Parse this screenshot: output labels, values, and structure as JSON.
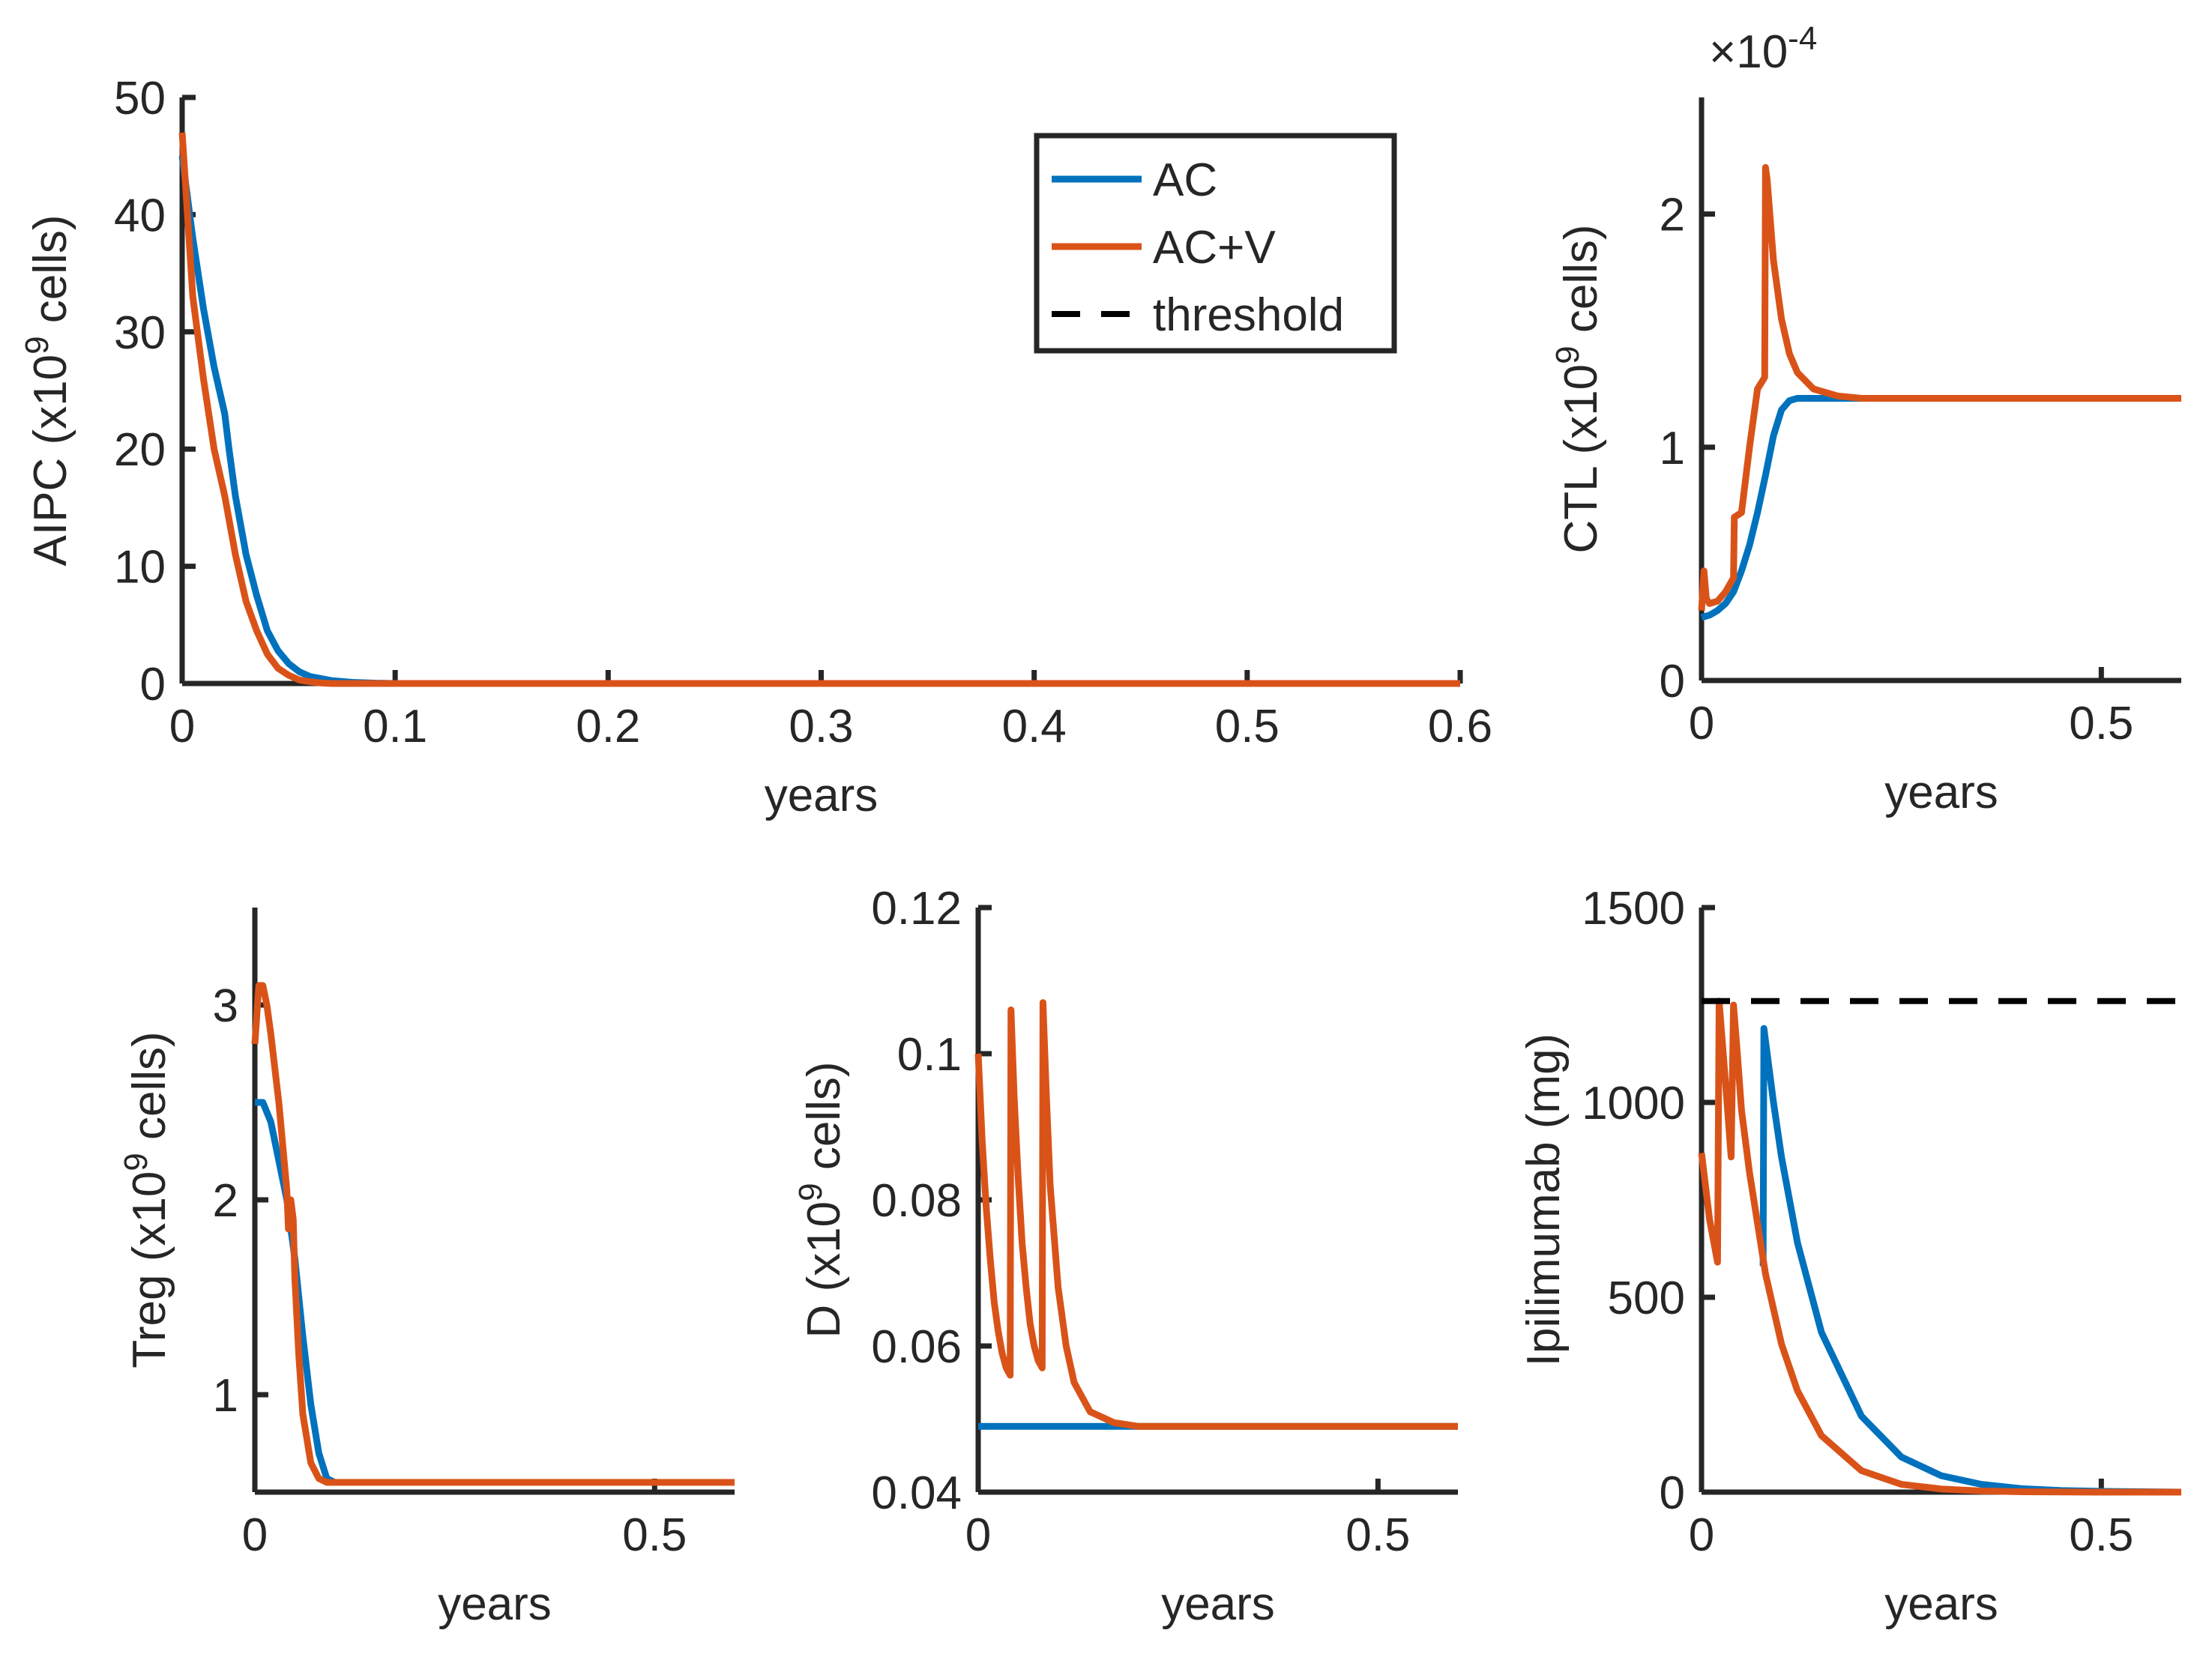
{
  "colors": {
    "AC": "#0072BD",
    "AC+V": "#D95319",
    "threshold": "#000000",
    "axis": "#262626"
  },
  "legend": {
    "entries": [
      {
        "label": "AC",
        "series": "AC"
      },
      {
        "label": "AC+V",
        "series": "AC+V"
      },
      {
        "label": "threshold",
        "series": "threshold"
      }
    ]
  },
  "chart_data": [
    {
      "id": "aipc",
      "type": "line",
      "xlabel": "years",
      "ylabel": "AIPC (x10^9 cells)",
      "xlim": [
        0,
        0.6
      ],
      "ylim": [
        0,
        50
      ],
      "xticks": [
        0,
        0.1,
        0.2,
        0.3,
        0.4,
        0.5,
        0.6
      ],
      "xtick_labels": [
        "0",
        "0.1",
        "0.2",
        "0.3",
        "0.4",
        "0.5",
        "0.6"
      ],
      "yticks": [
        0,
        10,
        20,
        30,
        40,
        50
      ],
      "ytick_labels": [
        "0",
        "10",
        "20",
        "30",
        "40",
        "50"
      ],
      "series": [
        {
          "name": "AC",
          "x": [
            0,
            0.005,
            0.01,
            0.015,
            0.02,
            0.022,
            0.025,
            0.03,
            0.035,
            0.04,
            0.045,
            0.05,
            0.055,
            0.06,
            0.07,
            0.08,
            0.09,
            0.1,
            0.6
          ],
          "y": [
            45,
            38,
            32,
            27,
            23,
            20,
            16,
            11,
            7.5,
            4.5,
            2.8,
            1.7,
            1.0,
            0.6,
            0.25,
            0.1,
            0.03,
            0,
            0
          ]
        },
        {
          "name": "AC+V",
          "x": [
            0,
            0.005,
            0.01,
            0.015,
            0.02,
            0.025,
            0.03,
            0.035,
            0.04,
            0.045,
            0.05,
            0.055,
            0.06,
            0.065,
            0.07,
            0.6
          ],
          "y": [
            47,
            33,
            26,
            20,
            16,
            11,
            7,
            4.5,
            2.5,
            1.3,
            0.7,
            0.3,
            0.15,
            0.05,
            0,
            0
          ]
        }
      ]
    },
    {
      "id": "ctl",
      "type": "line",
      "xlabel": "years",
      "ylabel": "CTL (x10^9 cells)",
      "exponent_label": "×10^-4",
      "xlim": [
        0,
        0.6
      ],
      "ylim": [
        0,
        2.5
      ],
      "xticks": [
        0,
        0.5
      ],
      "xtick_labels": [
        "0",
        "0.5"
      ],
      "yticks": [
        0,
        1,
        2
      ],
      "ytick_labels": [
        "0",
        "1",
        "2"
      ],
      "series": [
        {
          "name": "AC",
          "x": [
            0,
            0.01,
            0.02,
            0.03,
            0.04,
            0.05,
            0.06,
            0.07,
            0.08,
            0.09,
            0.1,
            0.11,
            0.12,
            0.14,
            0.2,
            0.6
          ],
          "y": [
            0.27,
            0.28,
            0.3,
            0.33,
            0.38,
            0.47,
            0.58,
            0.72,
            0.88,
            1.05,
            1.16,
            1.2,
            1.21,
            1.21,
            1.21,
            1.21
          ]
        },
        {
          "name": "AC+V",
          "x": [
            0,
            0.003,
            0.006,
            0.01,
            0.02,
            0.03,
            0.04,
            0.041,
            0.05,
            0.06,
            0.07,
            0.079,
            0.08,
            0.082,
            0.09,
            0.1,
            0.11,
            0.12,
            0.14,
            0.17,
            0.2,
            0.6
          ],
          "y": [
            0.3,
            0.47,
            0.35,
            0.33,
            0.34,
            0.38,
            0.44,
            0.7,
            0.72,
            1.0,
            1.25,
            1.3,
            2.2,
            2.15,
            1.8,
            1.55,
            1.4,
            1.32,
            1.25,
            1.22,
            1.21,
            1.21
          ]
        }
      ]
    },
    {
      "id": "treg",
      "type": "line",
      "xlabel": "years",
      "ylabel": "Treg (x10^9 cells)",
      "xlim": [
        0,
        0.6
      ],
      "ylim": [
        0.5,
        3.5
      ],
      "xticks": [
        0,
        0.5
      ],
      "xtick_labels": [
        "0",
        "0.5"
      ],
      "yticks": [
        1,
        2,
        3
      ],
      "ytick_labels": [
        "1",
        "2",
        "3"
      ],
      "series": [
        {
          "name": "AC",
          "x": [
            0,
            0.01,
            0.02,
            0.03,
            0.04,
            0.05,
            0.06,
            0.07,
            0.08,
            0.09,
            0.1,
            0.6
          ],
          "y": [
            2.5,
            2.5,
            2.4,
            2.2,
            2.0,
            1.7,
            1.3,
            0.95,
            0.7,
            0.57,
            0.55,
            0.55
          ]
        },
        {
          "name": "AC+V",
          "x": [
            0,
            0.005,
            0.01,
            0.015,
            0.02,
            0.03,
            0.04,
            0.042,
            0.045,
            0.048,
            0.05,
            0.055,
            0.06,
            0.07,
            0.08,
            0.09,
            0.6
          ],
          "y": [
            2.8,
            3.1,
            3.1,
            3.0,
            2.85,
            2.5,
            2.05,
            1.85,
            2.0,
            1.9,
            1.6,
            1.2,
            0.9,
            0.65,
            0.57,
            0.55,
            0.55
          ]
        }
      ]
    },
    {
      "id": "d",
      "type": "line",
      "xlabel": "years",
      "ylabel": "D (x10^9 cells)",
      "xlim": [
        0,
        0.6
      ],
      "ylim": [
        0.04,
        0.12
      ],
      "xticks": [
        0,
        0.5
      ],
      "xtick_labels": [
        "0",
        "0.5"
      ],
      "yticks": [
        0.04,
        0.06,
        0.08,
        0.1,
        0.12
      ],
      "ytick_labels": [
        "0.04",
        "0.06",
        "0.08",
        "0.1",
        "0.12"
      ],
      "series": [
        {
          "name": "AC",
          "x": [
            0,
            0.6
          ],
          "y": [
            0.049,
            0.049
          ]
        },
        {
          "name": "AC+V",
          "x": [
            0,
            0.005,
            0.01,
            0.015,
            0.02,
            0.025,
            0.03,
            0.035,
            0.04,
            0.041,
            0.045,
            0.05,
            0.055,
            0.06,
            0.065,
            0.07,
            0.075,
            0.08,
            0.081,
            0.085,
            0.09,
            0.1,
            0.11,
            0.12,
            0.14,
            0.17,
            0.2,
            0.6
          ],
          "y": [
            0.1,
            0.088,
            0.079,
            0.072,
            0.066,
            0.062,
            0.059,
            0.057,
            0.056,
            0.106,
            0.094,
            0.083,
            0.074,
            0.068,
            0.063,
            0.06,
            0.058,
            0.057,
            0.107,
            0.095,
            0.082,
            0.068,
            0.06,
            0.055,
            0.051,
            0.0495,
            0.049,
            0.049
          ]
        }
      ]
    },
    {
      "id": "ipi",
      "type": "line",
      "xlabel": "years",
      "ylabel": "Ipilimumab (mg)",
      "xlim": [
        0,
        0.6
      ],
      "ylim": [
        0,
        1500
      ],
      "xticks": [
        0,
        0.5
      ],
      "xtick_labels": [
        "0",
        "0.5"
      ],
      "yticks": [
        0,
        500,
        1000,
        1500
      ],
      "ytick_labels": [
        "0",
        "500",
        "1000",
        "1500"
      ],
      "threshold": 1260,
      "series": [
        {
          "name": "AC",
          "x": [
            0.077,
            0.078,
            0.09,
            0.1,
            0.12,
            0.15,
            0.2,
            0.25,
            0.3,
            0.35,
            0.4,
            0.45,
            0.5,
            0.6
          ],
          "y": [
            580,
            1190,
            1000,
            860,
            640,
            410,
            195,
            90,
            42,
            20,
            9,
            4,
            2,
            0
          ]
        },
        {
          "name": "AC+V",
          "x": [
            0,
            0.01,
            0.02,
            0.022,
            0.03,
            0.037,
            0.04,
            0.045,
            0.05,
            0.06,
            0.08,
            0.1,
            0.12,
            0.15,
            0.2,
            0.25,
            0.3,
            0.35,
            0.4,
            0.5,
            0.6
          ],
          "y": [
            870,
            700,
            590,
            1260,
            1050,
            860,
            1250,
            1120,
            980,
            820,
            560,
            380,
            260,
            145,
            55,
            20,
            8,
            3,
            1,
            0,
            0
          ]
        },
        {
          "name": "threshold",
          "x": [
            0,
            0.6
          ],
          "y": [
            1260,
            1260
          ]
        }
      ]
    }
  ]
}
